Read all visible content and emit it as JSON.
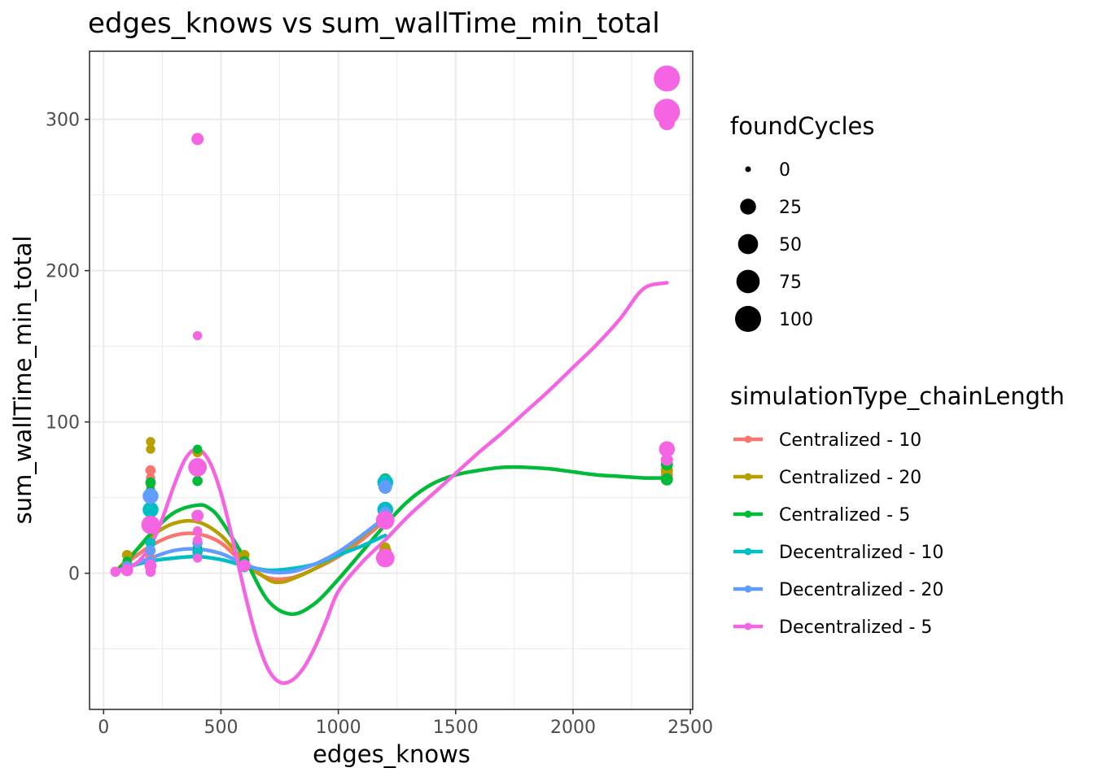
{
  "chart_data": {
    "type": "scatter",
    "title": "edges_knows  vs  sum_wallTime_min_total",
    "xlabel": "edges_knows",
    "ylabel": "sum_wallTime_min_total",
    "xlim": [
      -60,
      2510
    ],
    "ylim": [
      -90,
      345
    ],
    "x_ticks": [
      0,
      500,
      1000,
      1500,
      2000,
      2500
    ],
    "y_ticks": [
      0,
      100,
      200,
      300
    ],
    "grid": true,
    "legend_position": "right",
    "size_legend": {
      "title": "foundCycles",
      "entries": [
        {
          "label": "0",
          "value": 0
        },
        {
          "label": "25",
          "value": 25
        },
        {
          "label": "50",
          "value": 50
        },
        {
          "label": "75",
          "value": 75
        },
        {
          "label": "100",
          "value": 100
        }
      ]
    },
    "color_legend_title": "simulationType_chainLength",
    "series": [
      {
        "name": "Centralized - 10",
        "color": "#F8766D",
        "points": [
          [
            50,
            1,
            0
          ],
          [
            100,
            6,
            5
          ],
          [
            200,
            68,
            5
          ],
          [
            200,
            63,
            3
          ],
          [
            200,
            58,
            3
          ],
          [
            200,
            10,
            5
          ],
          [
            400,
            70,
            10
          ],
          [
            600,
            5,
            5
          ],
          [
            1200,
            15,
            10
          ],
          [
            2400,
            65,
            10
          ]
        ],
        "smooth": [
          [
            50,
            1
          ],
          [
            100,
            7
          ],
          [
            200,
            18
          ],
          [
            300,
            25
          ],
          [
            400,
            26
          ],
          [
            500,
            20
          ],
          [
            600,
            6
          ],
          [
            700,
            -3
          ],
          [
            800,
            -3
          ],
          [
            900,
            3
          ],
          [
            1000,
            11
          ],
          [
            1100,
            22
          ],
          [
            1200,
            35
          ]
        ]
      },
      {
        "name": "Centralized - 20",
        "color": "#B79F00",
        "points": [
          [
            50,
            1,
            0
          ],
          [
            100,
            12,
            5
          ],
          [
            200,
            87,
            3
          ],
          [
            200,
            82,
            3
          ],
          [
            200,
            60,
            5
          ],
          [
            400,
            80,
            5
          ],
          [
            600,
            12,
            5
          ],
          [
            1200,
            17,
            5
          ],
          [
            2400,
            68,
            10
          ]
        ],
        "smooth": [
          [
            50,
            1
          ],
          [
            100,
            9
          ],
          [
            200,
            24
          ],
          [
            300,
            33
          ],
          [
            400,
            34
          ],
          [
            500,
            25
          ],
          [
            600,
            8
          ],
          [
            700,
            -4
          ],
          [
            750,
            -6
          ],
          [
            800,
            -4
          ],
          [
            900,
            3
          ],
          [
            1000,
            12
          ],
          [
            1100,
            24
          ],
          [
            1200,
            37
          ]
        ]
      },
      {
        "name": "Centralized - 5",
        "color": "#00BA38",
        "points": [
          [
            50,
            1,
            0
          ],
          [
            100,
            8,
            3
          ],
          [
            200,
            60,
            5
          ],
          [
            200,
            55,
            3
          ],
          [
            400,
            82,
            3
          ],
          [
            400,
            70,
            5
          ],
          [
            400,
            61,
            5
          ],
          [
            400,
            17,
            3
          ],
          [
            600,
            8,
            5
          ],
          [
            1200,
            62,
            10
          ],
          [
            1200,
            58,
            10
          ],
          [
            2400,
            72,
            10
          ],
          [
            2400,
            62,
            10
          ]
        ],
        "smooth": [
          [
            50,
            1
          ],
          [
            100,
            8
          ],
          [
            200,
            26
          ],
          [
            300,
            40
          ],
          [
            400,
            45
          ],
          [
            450,
            43
          ],
          [
            500,
            35
          ],
          [
            600,
            10
          ],
          [
            700,
            -18
          ],
          [
            800,
            -27
          ],
          [
            900,
            -20
          ],
          [
            1000,
            -4
          ],
          [
            1100,
            14
          ],
          [
            1200,
            32
          ],
          [
            1300,
            48
          ],
          [
            1400,
            59
          ],
          [
            1500,
            65
          ],
          [
            1600,
            68
          ],
          [
            1700,
            70
          ],
          [
            1800,
            70
          ],
          [
            1900,
            69
          ],
          [
            2000,
            67
          ],
          [
            2100,
            65
          ],
          [
            2200,
            64
          ],
          [
            2300,
            63
          ],
          [
            2400,
            63
          ]
        ]
      },
      {
        "name": "Decentralized - 10",
        "color": "#00BFC4",
        "points": [
          [
            50,
            1,
            0
          ],
          [
            100,
            3,
            3
          ],
          [
            200,
            42,
            25
          ],
          [
            200,
            20,
            5
          ],
          [
            200,
            5,
            3
          ],
          [
            400,
            14,
            5
          ],
          [
            600,
            4,
            5
          ],
          [
            1200,
            60,
            25
          ],
          [
            1200,
            42,
            25
          ],
          [
            1200,
            38,
            5
          ]
        ],
        "smooth": [
          [
            50,
            1
          ],
          [
            100,
            4
          ],
          [
            200,
            8
          ],
          [
            300,
            10
          ],
          [
            400,
            11
          ],
          [
            500,
            9
          ],
          [
            600,
            5
          ],
          [
            700,
            2
          ],
          [
            800,
            3
          ],
          [
            900,
            6
          ],
          [
            1000,
            12
          ],
          [
            1100,
            18
          ],
          [
            1200,
            25
          ]
        ]
      },
      {
        "name": "Decentralized - 20",
        "color": "#619CFF",
        "points": [
          [
            50,
            1,
            3
          ],
          [
            100,
            5,
            3
          ],
          [
            200,
            51,
            25
          ],
          [
            200,
            15,
            5
          ],
          [
            200,
            8,
            5
          ],
          [
            400,
            20,
            5
          ],
          [
            600,
            6,
            5
          ],
          [
            1200,
            57,
            15
          ],
          [
            1200,
            40,
            10
          ],
          [
            1200,
            12,
            5
          ]
        ],
        "smooth": [
          [
            50,
            1
          ],
          [
            100,
            4
          ],
          [
            200,
            10
          ],
          [
            300,
            15
          ],
          [
            400,
            16
          ],
          [
            500,
            13
          ],
          [
            600,
            6
          ],
          [
            700,
            1
          ],
          [
            800,
            1
          ],
          [
            900,
            6
          ],
          [
            1000,
            14
          ],
          [
            1100,
            25
          ],
          [
            1200,
            37
          ]
        ]
      },
      {
        "name": "Decentralized - 5",
        "color": "#F564E3",
        "points": [
          [
            50,
            1,
            5
          ],
          [
            100,
            2,
            10
          ],
          [
            200,
            32,
            40
          ],
          [
            200,
            5,
            10
          ],
          [
            200,
            1,
            5
          ],
          [
            400,
            287,
            10
          ],
          [
            400,
            157,
            3
          ],
          [
            400,
            70,
            40
          ],
          [
            400,
            38,
            10
          ],
          [
            400,
            28,
            3
          ],
          [
            400,
            22,
            3
          ],
          [
            400,
            10,
            3
          ],
          [
            600,
            5,
            10
          ],
          [
            1200,
            35,
            40
          ],
          [
            1200,
            10,
            40
          ],
          [
            2400,
            327,
            100
          ],
          [
            2400,
            305,
            100
          ],
          [
            2400,
            298,
            25
          ],
          [
            2400,
            82,
            25
          ],
          [
            2400,
            75,
            10
          ]
        ],
        "smooth": [
          [
            50,
            1
          ],
          [
            100,
            3
          ],
          [
            150,
            8
          ],
          [
            200,
            18
          ],
          [
            250,
            36
          ],
          [
            300,
            58
          ],
          [
            350,
            76
          ],
          [
            400,
            82
          ],
          [
            450,
            74
          ],
          [
            500,
            53
          ],
          [
            550,
            22
          ],
          [
            600,
            -12
          ],
          [
            650,
            -42
          ],
          [
            700,
            -63
          ],
          [
            750,
            -72
          ],
          [
            800,
            -71
          ],
          [
            850,
            -63
          ],
          [
            900,
            -49
          ],
          [
            950,
            -31
          ],
          [
            1000,
            -12
          ],
          [
            1100,
            7
          ],
          [
            1200,
            22
          ],
          [
            1300,
            38
          ],
          [
            1400,
            52
          ],
          [
            1500,
            66
          ],
          [
            1600,
            80
          ],
          [
            1700,
            93
          ],
          [
            1800,
            107
          ],
          [
            1900,
            121
          ],
          [
            2000,
            136
          ],
          [
            2100,
            151
          ],
          [
            2200,
            168
          ],
          [
            2300,
            188
          ],
          [
            2400,
            192
          ]
        ]
      }
    ]
  }
}
